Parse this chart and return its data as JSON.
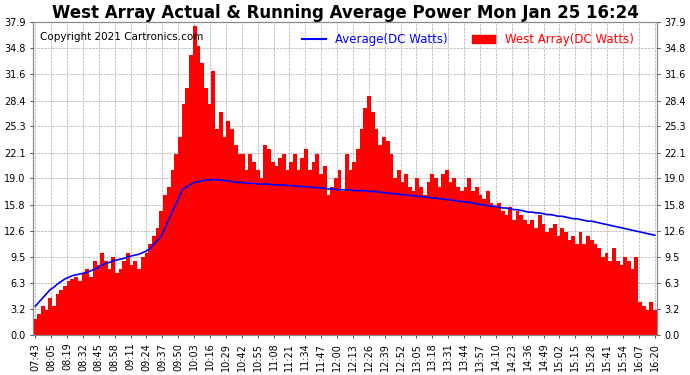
{
  "title": "West Array Actual & Running Average Power Mon Jan 25 16:24",
  "copyright": "Copyright 2021 Cartronics.com",
  "legend_avg": "Average(DC Watts)",
  "legend_west": "West Array(DC Watts)",
  "yticks": [
    0.0,
    3.2,
    6.3,
    9.5,
    12.6,
    15.8,
    19.0,
    22.1,
    25.3,
    28.4,
    31.6,
    34.8,
    37.9
  ],
  "ylim": [
    0.0,
    37.9
  ],
  "bar_color": "#ff0000",
  "avg_line_color": "#0000ff",
  "grid_color": "#aaaaaa",
  "fig_bg_color": "#ffffff",
  "plot_bg_color": "#ffffff",
  "title_fontsize": 12,
  "tick_fontsize": 7,
  "legend_fontsize": 8.5,
  "copyright_fontsize": 7.5,
  "xtick_labels": [
    "07:43",
    "08:05",
    "08:19",
    "08:32",
    "08:45",
    "08:58",
    "09:11",
    "09:24",
    "09:37",
    "09:50",
    "10:03",
    "10:16",
    "10:29",
    "10:42",
    "10:55",
    "11:08",
    "11:21",
    "11:34",
    "11:47",
    "12:00",
    "12:13",
    "12:26",
    "12:39",
    "12:52",
    "13:05",
    "13:18",
    "13:31",
    "13:44",
    "13:57",
    "14:10",
    "14:23",
    "14:36",
    "14:49",
    "15:02",
    "15:15",
    "15:28",
    "15:41",
    "15:54",
    "16:07",
    "16:20"
  ],
  "west_values": [
    2.0,
    2.5,
    3.5,
    3.0,
    4.5,
    3.5,
    5.0,
    5.5,
    6.0,
    6.5,
    6.8,
    7.0,
    6.5,
    7.5,
    8.0,
    7.0,
    9.0,
    8.5,
    10.0,
    9.0,
    8.0,
    9.5,
    7.5,
    8.0,
    9.0,
    10.0,
    8.5,
    9.0,
    8.0,
    9.5,
    10.0,
    11.0,
    12.0,
    13.0,
    15.0,
    17.0,
    18.0,
    20.0,
    22.0,
    24.0,
    28.0,
    30.0,
    34.0,
    37.5,
    35.0,
    33.0,
    30.0,
    28.0,
    32.0,
    25.0,
    27.0,
    24.0,
    26.0,
    25.0,
    23.0,
    22.0,
    22.0,
    20.0,
    22.0,
    21.0,
    20.0,
    19.0,
    23.0,
    22.5,
    21.0,
    20.5,
    21.5,
    22.0,
    20.0,
    21.0,
    22.0,
    20.0,
    21.5,
    22.5,
    20.0,
    21.0,
    22.0,
    19.5,
    20.5,
    17.0,
    18.0,
    19.0,
    20.0,
    17.5,
    22.0,
    20.0,
    21.0,
    22.5,
    25.0,
    27.5,
    29.0,
    27.0,
    25.0,
    23.0,
    24.0,
    23.5,
    22.0,
    19.0,
    20.0,
    18.5,
    19.5,
    18.0,
    17.5,
    19.0,
    18.0,
    17.0,
    18.5,
    19.5,
    19.0,
    18.0,
    19.5,
    20.0,
    18.5,
    19.0,
    18.0,
    17.5,
    18.0,
    19.0,
    17.5,
    18.0,
    17.0,
    16.5,
    17.5,
    16.0,
    15.5,
    16.0,
    15.0,
    14.5,
    15.5,
    14.0,
    15.0,
    14.5,
    14.0,
    13.5,
    14.0,
    13.0,
    14.5,
    13.5,
    12.5,
    13.0,
    13.5,
    12.0,
    13.0,
    12.5,
    11.5,
    12.0,
    11.0,
    12.5,
    11.0,
    12.0,
    11.5,
    11.0,
    10.5,
    9.5,
    10.0,
    9.0,
    10.5,
    9.0,
    8.5,
    9.5,
    9.0,
    8.0,
    9.5,
    4.0,
    3.5,
    3.0,
    4.0,
    3.0
  ],
  "avg_values": [
    3.5,
    4.0,
    4.5,
    5.0,
    5.5,
    5.8,
    6.2,
    6.5,
    6.8,
    7.0,
    7.2,
    7.3,
    7.4,
    7.5,
    7.6,
    7.8,
    8.0,
    8.2,
    8.5,
    8.7,
    8.8,
    9.0,
    9.1,
    9.2,
    9.3,
    9.5,
    9.6,
    9.7,
    9.8,
    10.0,
    10.2,
    10.5,
    11.0,
    11.5,
    12.0,
    13.0,
    14.0,
    15.0,
    16.0,
    17.0,
    17.8,
    18.0,
    18.3,
    18.5,
    18.6,
    18.7,
    18.8,
    18.8,
    18.9,
    18.8,
    18.8,
    18.7,
    18.7,
    18.6,
    18.5,
    18.5,
    18.5,
    18.4,
    18.4,
    18.4,
    18.3,
    18.3,
    18.3,
    18.3,
    18.2,
    18.2,
    18.2,
    18.2,
    18.1,
    18.1,
    18.1,
    18.0,
    18.0,
    18.0,
    17.9,
    17.9,
    17.9,
    17.8,
    17.8,
    17.7,
    17.7,
    17.7,
    17.6,
    17.6,
    17.6,
    17.6,
    17.5,
    17.5,
    17.5,
    17.5,
    17.4,
    17.4,
    17.4,
    17.3,
    17.3,
    17.2,
    17.2,
    17.1,
    17.1,
    17.0,
    17.0,
    16.9,
    16.9,
    16.8,
    16.8,
    16.7,
    16.7,
    16.6,
    16.6,
    16.5,
    16.5,
    16.4,
    16.4,
    16.3,
    16.2,
    16.2,
    16.1,
    16.1,
    16.0,
    15.9,
    15.8,
    15.8,
    15.7,
    15.6,
    15.6,
    15.5,
    15.4,
    15.4,
    15.3,
    15.2,
    15.2,
    15.1,
    15.0,
    14.9,
    14.9,
    14.8,
    14.8,
    14.7,
    14.6,
    14.6,
    14.5,
    14.4,
    14.4,
    14.3,
    14.2,
    14.1,
    14.1,
    14.0,
    13.9,
    13.8,
    13.8,
    13.7,
    13.6,
    13.5,
    13.4,
    13.3,
    13.2,
    13.1,
    13.0,
    12.9,
    12.8,
    12.7,
    12.6,
    12.5,
    12.4,
    12.3,
    12.2,
    12.1
  ]
}
